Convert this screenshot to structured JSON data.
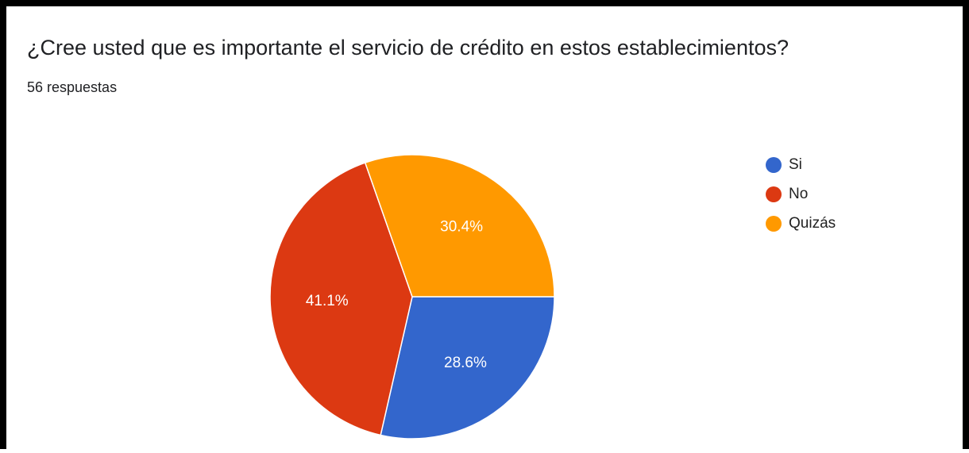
{
  "chart_data": {
    "type": "pie",
    "title": "¿Cree usted que es importante el servicio de crédito en estos establecimientos?",
    "subtitle": "56 respuestas",
    "categories": [
      "Si",
      "No",
      "Quizás"
    ],
    "values": [
      28.6,
      41.1,
      30.4
    ],
    "value_labels": [
      "28.6%",
      "41.1%",
      "30.4%"
    ],
    "colors": [
      "#3366cc",
      "#dc3912",
      "#ff9900"
    ],
    "legend": "right"
  }
}
